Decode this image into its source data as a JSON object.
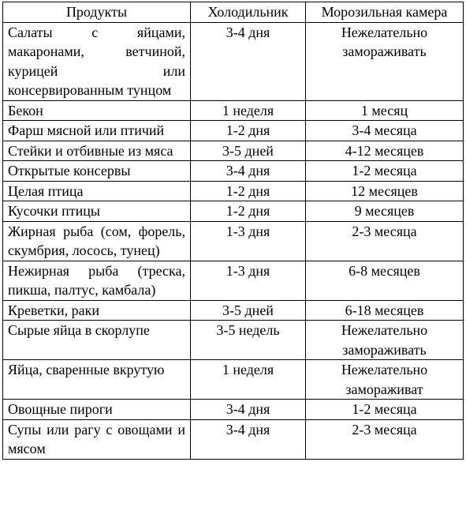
{
  "table": {
    "headers": [
      "Продукты",
      "Холодильник",
      "Морозильная камера"
    ],
    "rows": [
      {
        "product": "Салаты с яйцами, макаронами, ветчиной, курицей или консервированным тунцом",
        "fridge": "3-4 дня",
        "freezer": "Нежелательно замораживать"
      },
      {
        "product": "Бекон",
        "fridge": "1 неделя",
        "freezer": "1 месяц"
      },
      {
        "product": "Фарш мясной или птичий",
        "fridge": "1-2 дня",
        "freezer": "3-4 месяца"
      },
      {
        "product": "Стейки и отбивные из мяса",
        "fridge": "3-5 дней",
        "freezer": "4-12 месяцев"
      },
      {
        "product": "Открытые консервы",
        "fridge": "3-4 дня",
        "freezer": "1-2 месяца"
      },
      {
        "product": "Целая птица",
        "fridge": "1-2 дня",
        "freezer": "12 месяцев"
      },
      {
        "product": "Кусочки птицы",
        "fridge": "1-2 дня",
        "freezer": "9 месяцев"
      },
      {
        "product": "Жирная рыба (сом, форель, скумбрия, лосось, тунец)",
        "fridge": "1-3 дня",
        "freezer": "2-3 месяца"
      },
      {
        "product": "Нежирная рыба (треска, пикша, палтус, камбала)",
        "fridge": "1-3 дня",
        "freezer": "6-8 месяцев"
      },
      {
        "product": "Креветки, раки",
        "fridge": "3-5 дней",
        "freezer": "6-18 месяцев"
      },
      {
        "product": "Сырые яйца в скорлупе",
        "fridge": "3-5 недель",
        "freezer": "Нежелательно замораживать"
      },
      {
        "product": "Яйца, сваренные вкрутую",
        "fridge": "1 неделя",
        "freezer": "Нежелательно замораживат"
      },
      {
        "product": "Овощные пироги",
        "fridge": "3-4 дня",
        "freezer": "1-2 месяца"
      },
      {
        "product": "Супы или рагу с овощами и мясом",
        "fridge": "3-4 дня",
        "freezer": "2-3 месяца"
      }
    ]
  }
}
